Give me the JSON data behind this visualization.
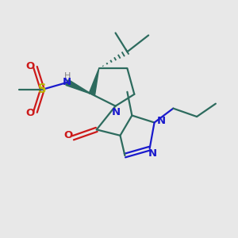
{
  "background_color": "#e8e8e8",
  "bond_color": "#2d6b5e",
  "nitrogen_color": "#1a1acc",
  "oxygen_color": "#cc1a1a",
  "sulfur_color": "#b8b800",
  "hydrogen_color": "#808080",
  "line_width": 1.6,
  "font_size": 9.5,
  "fig_size": [
    3.0,
    3.0
  ],
  "dpi": 100,
  "xlim": [
    0,
    10
  ],
  "ylim": [
    0,
    10
  ]
}
